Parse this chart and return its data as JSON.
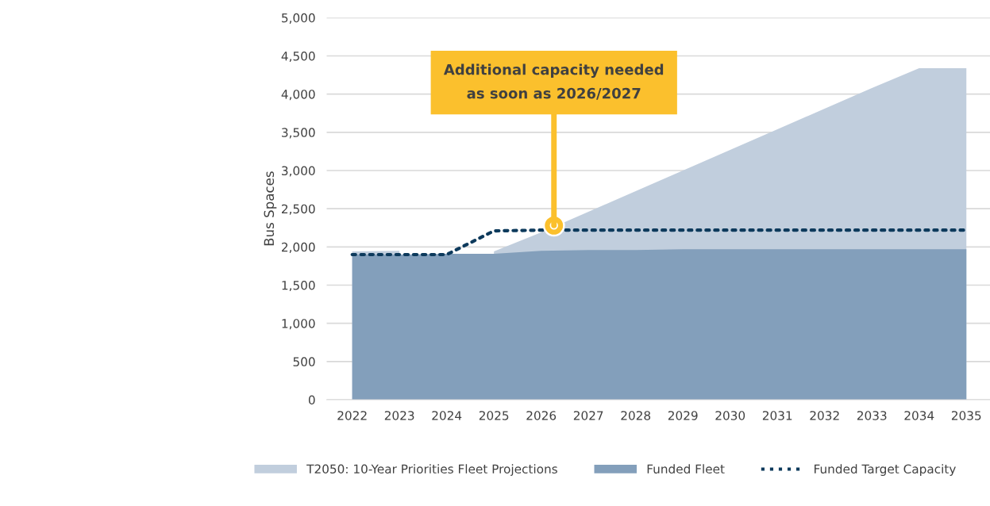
{
  "chart_data": {
    "type": "area",
    "ylabel": "Bus Spaces",
    "x": [
      2022,
      2023,
      2024,
      2025,
      2026,
      2027,
      2028,
      2029,
      2030,
      2031,
      2032,
      2033,
      2034,
      2035
    ],
    "series": [
      {
        "name": "T2050: 10-Year Priorities Fleet Projections",
        "color": "#c1cedd",
        "values": [
          1940,
          1950,
          null,
          1940,
          2190,
          2460,
          2730,
          3000,
          3270,
          3540,
          3810,
          4080,
          4340,
          4340
        ]
      },
      {
        "name": "Funded Fleet",
        "color": "#839fbb",
        "values": [
          1900,
          1900,
          1910,
          1910,
          1950,
          1960,
          1960,
          1970,
          1970,
          1970,
          1970,
          1970,
          1970,
          1970
        ]
      },
      {
        "name": "Funded Target Capacity",
        "color": "#0d3a5c",
        "type": "line",
        "line_style": "dotted",
        "values": [
          1900,
          1900,
          1900,
          2210,
          2220,
          2220,
          2220,
          2220,
          2220,
          2220,
          2220,
          2220,
          2220,
          2220
        ]
      }
    ],
    "xlim": [
      2021.46,
      2035.5
    ],
    "xticks": [
      2022,
      2023,
      2024,
      2025,
      2026,
      2027,
      2028,
      2029,
      2030,
      2031,
      2032,
      2033,
      2034,
      2035
    ],
    "ylim": [
      0,
      5000
    ],
    "yticks": [
      0,
      500,
      {
        "value": 1000,
        "label": "1,000"
      },
      {
        "value": 1500,
        "label": "1,500"
      },
      {
        "value": 2000,
        "label": "2,000"
      },
      {
        "value": 2500,
        "label": "2,500"
      },
      {
        "value": 3000,
        "label": "3,000"
      },
      {
        "value": 3500,
        "label": "3,500"
      },
      {
        "value": 4000,
        "label": "4,000"
      },
      {
        "value": 4500,
        "label": "4,500"
      },
      {
        "value": 5000,
        "label": "5,000"
      }
    ],
    "grid": "y",
    "legend": "bottom",
    "annotations": [
      {
        "text": "Additional capacity needed\nas soon as 2026/2027",
        "x": 2026.27,
        "y": 2280
      }
    ]
  }
}
